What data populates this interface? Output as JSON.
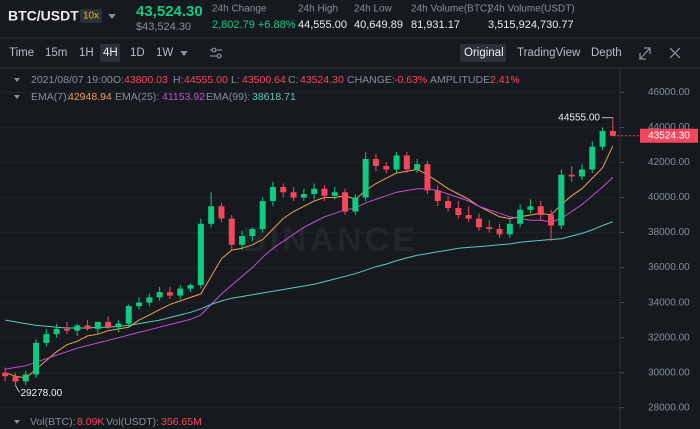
{
  "header": {
    "pair": "BTC/USDT",
    "leverage": "10x",
    "price": "43,524.30",
    "price_usd": "$43,524.30",
    "stats": [
      {
        "label": "24h Change",
        "value": "2,802.79 +6.88%"
      },
      {
        "label": "24h High",
        "value": "44,555.00"
      },
      {
        "label": "24h Low",
        "value": "40,649.89"
      },
      {
        "label": "24h Volume(BTC)",
        "value": "81,931.17"
      },
      {
        "label": "24h Volume(USDT)",
        "value": "3,515,924,730.77"
      }
    ]
  },
  "toolbar": {
    "intervals": [
      "Time",
      "15m",
      "1H",
      "4H",
      "1D",
      "1W"
    ],
    "views": [
      "Original",
      "TradingView",
      "Depth"
    ]
  },
  "info": {
    "datetime": "2021/08/07 19:00",
    "items": [
      {
        "label": "O:",
        "value": "43800.03"
      },
      {
        "label": "H:",
        "value": "44555.00"
      },
      {
        "label": "L:",
        "value": "43500.64"
      },
      {
        "label": "C:",
        "value": "43524.30"
      },
      {
        "label": "CHANGE:",
        "value": "-0.63%"
      },
      {
        "label": "AMPLITUDE:",
        "value": "2.41%"
      }
    ]
  },
  "volume": [
    {
      "label": "Vol(BTC):",
      "value": "8.09K"
    },
    {
      "label": "Vol(USDT):",
      "value": "356.65M"
    }
  ],
  "chart_data": {
    "type": "candlestick",
    "watermark": "BINANCE",
    "up_color": "#0ecb81",
    "down_color": "#f6465d",
    "grid": true,
    "ylim": [
      27700,
      46250
    ],
    "yticks": [
      {
        "value": 46000,
        "label": "46000.00"
      },
      {
        "value": 44000,
        "label": "44000.00"
      },
      {
        "value": 42000,
        "label": "42000.00"
      },
      {
        "value": 40000,
        "label": "40000.00"
      },
      {
        "value": 38000,
        "label": "38000.00"
      },
      {
        "value": 36000,
        "label": "36000.00"
      },
      {
        "value": 34000,
        "label": "34000.00"
      },
      {
        "value": 32000,
        "label": "32000.00"
      },
      {
        "value": 30000,
        "label": "30000.00"
      },
      {
        "value": 28000,
        "label": "28000.00"
      }
    ],
    "open": [
      30000,
      29800,
      29500,
      29900,
      31700,
      32200,
      32500,
      32400,
      32700,
      32500,
      32900,
      32600,
      32800,
      33800,
      34000,
      34300,
      34600,
      34400,
      34800,
      35000,
      38500,
      39500,
      38800,
      37300,
      37800,
      38200,
      39800,
      40600,
      40300,
      40000,
      40200,
      40500,
      40100,
      40300,
      39200,
      40000,
      42200,
      41800,
      41600,
      42400,
      41600,
      41900,
      40400,
      39800,
      39400,
      39000,
      38800,
      38300,
      38200,
      37900,
      38500,
      39300,
      39500,
      39000,
      38400,
      41300,
      41200,
      41600,
      42900,
      43800.03
    ],
    "high": [
      30300,
      30000,
      30100,
      31900,
      32500,
      32800,
      32900,
      32800,
      33000,
      32900,
      33200,
      33000,
      33900,
      34300,
      34500,
      34900,
      34900,
      35000,
      35100,
      38800,
      40300,
      39700,
      39000,
      38100,
      38300,
      40000,
      40900,
      40800,
      40600,
      40500,
      40800,
      40700,
      40600,
      40500,
      40200,
      42600,
      42500,
      42000,
      42600,
      42600,
      42200,
      42100,
      40700,
      40100,
      39800,
      39500,
      39100,
      38700,
      38500,
      38800,
      39600,
      39900,
      39800,
      39300,
      41600,
      41800,
      41900,
      43200,
      44000,
      44555
    ],
    "low": [
      29500,
      29278,
      29300,
      29700,
      31500,
      32000,
      32200,
      32100,
      32400,
      32200,
      32500,
      32300,
      32600,
      33600,
      33800,
      34100,
      34200,
      34200,
      34600,
      34800,
      38300,
      38600,
      37000,
      37000,
      37500,
      38000,
      39500,
      40000,
      39800,
      39800,
      39900,
      39800,
      39900,
      39000,
      39000,
      39800,
      41500,
      41400,
      41400,
      41400,
      41400,
      40200,
      39500,
      39200,
      38800,
      38600,
      38100,
      38000,
      37700,
      37700,
      38300,
      39100,
      38700,
      37500,
      38200,
      40900,
      41000,
      41400,
      42700,
      43500.64
    ],
    "close": [
      29800,
      29500,
      29900,
      31700,
      32200,
      32500,
      32400,
      32700,
      32500,
      32900,
      32600,
      32800,
      33800,
      34000,
      34300,
      34600,
      34400,
      34800,
      35000,
      38500,
      39500,
      38800,
      37300,
      37800,
      38200,
      39800,
      40600,
      40300,
      40000,
      40200,
      40500,
      40100,
      40300,
      39200,
      40000,
      42200,
      41800,
      41600,
      42400,
      41600,
      41900,
      40400,
      39800,
      39400,
      39000,
      38800,
      38300,
      38200,
      37900,
      38500,
      39300,
      39500,
      39000,
      38400,
      41300,
      41200,
      41600,
      42900,
      43800,
      43524.3
    ],
    "series": [
      {
        "name": "EMA(7):",
        "last_label": "42948.94",
        "color": "#f0a050",
        "values": [
          30000,
          29800,
          29700,
          30200,
          30700,
          31200,
          31600,
          31800,
          32100,
          32200,
          32400,
          32500,
          32600,
          33000,
          33300,
          33600,
          33900,
          34100,
          34300,
          34500,
          35500,
          36500,
          37000,
          37100,
          37300,
          37600,
          38200,
          38800,
          39200,
          39500,
          39800,
          40000,
          40000,
          40100,
          39900,
          40400,
          40800,
          41100,
          41400,
          41500,
          41600,
          41300,
          40900,
          40500,
          40200,
          39900,
          39500,
          39200,
          38900,
          38800,
          38900,
          39000,
          39100,
          39000,
          39600,
          40100,
          40500,
          41100,
          41700,
          42948.94
        ]
      },
      {
        "name": "EMA(25):",
        "last_label": "41153.92",
        "color": "#c34fd6",
        "values": [
          30200,
          30300,
          30400,
          30600,
          30800,
          31000,
          31200,
          31400,
          31550,
          31700,
          31850,
          32000,
          32150,
          32300,
          32450,
          32600,
          32750,
          32900,
          33050,
          33300,
          33900,
          34500,
          35000,
          35500,
          36000,
          36600,
          37100,
          37500,
          37900,
          38300,
          38600,
          38900,
          39100,
          39300,
          39400,
          39700,
          39900,
          40100,
          40300,
          40400,
          40500,
          40500,
          40400,
          40200,
          40000,
          39800,
          39500,
          39300,
          39100,
          38900,
          38800,
          38700,
          38700,
          38600,
          38800,
          39200,
          39600,
          40100,
          40600,
          41153.92
        ]
      },
      {
        "name": "EMA(99):",
        "last_label": "38618.71",
        "color": "#5ec7c0",
        "values": [
          33000,
          32900,
          32800,
          32700,
          32650,
          32600,
          32550,
          32550,
          32550,
          32600,
          32600,
          32650,
          32700,
          32800,
          32900,
          33000,
          33150,
          33300,
          33450,
          33650,
          33900,
          34100,
          34250,
          34350,
          34450,
          34550,
          34650,
          34750,
          34850,
          34950,
          35050,
          35200,
          35350,
          35500,
          35650,
          35850,
          36050,
          36200,
          36400,
          36550,
          36700,
          36800,
          36900,
          37000,
          37100,
          37150,
          37200,
          37250,
          37300,
          37350,
          37450,
          37500,
          37550,
          37600,
          37650,
          37800,
          37950,
          38150,
          38400,
          38618.71
        ]
      }
    ],
    "annotations": {
      "high": {
        "value": 44555,
        "label": "44555.00"
      },
      "low": {
        "value": 29278,
        "label": "29278.00"
      },
      "last": {
        "value": 43524.3,
        "label": "43524.30"
      }
    }
  }
}
